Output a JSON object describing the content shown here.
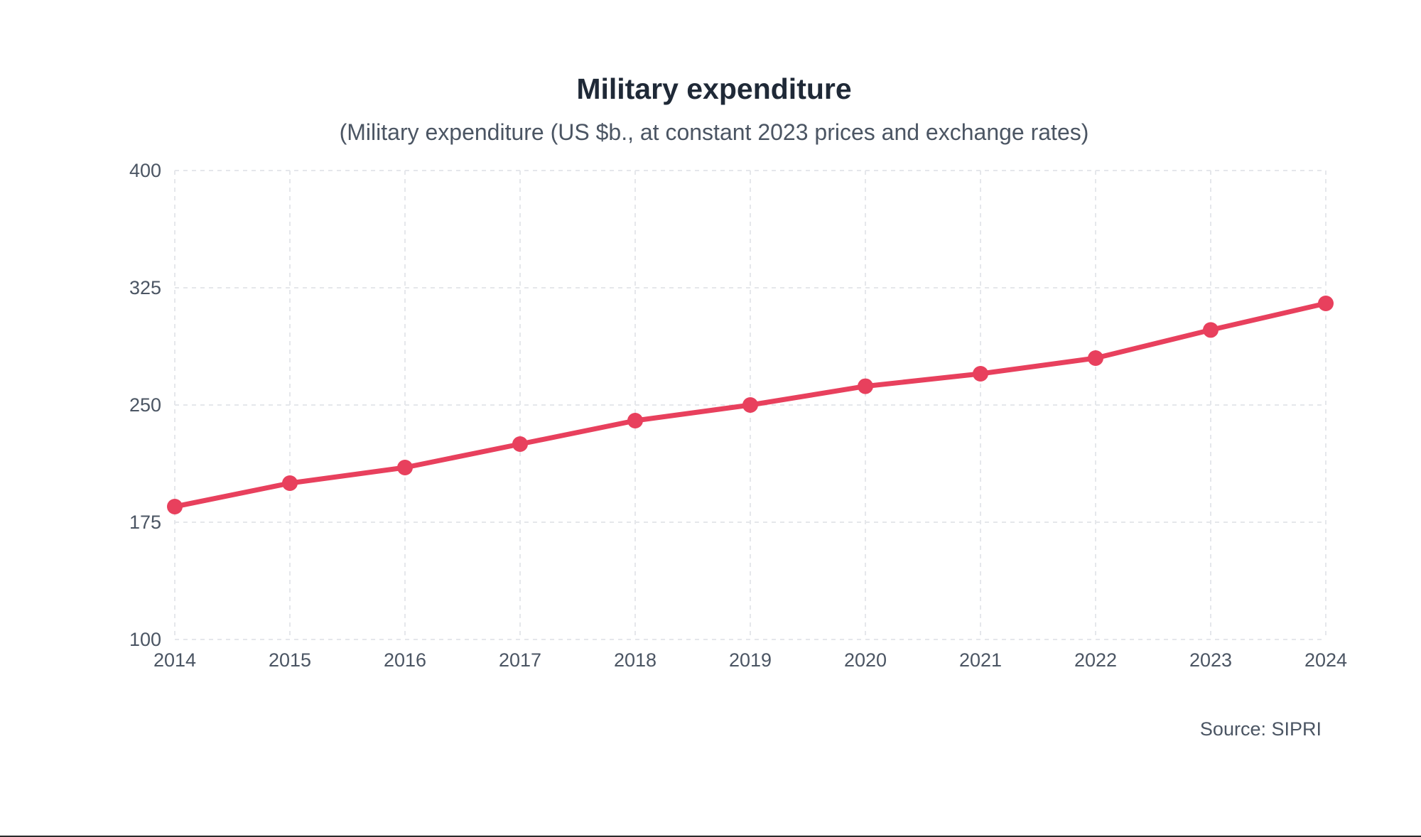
{
  "colors": {
    "series": "#e8405d",
    "text": "#1f2937",
    "muted": "#4b5563",
    "grid": "#e5e7eb"
  },
  "chart_data": {
    "type": "line",
    "title": "Military expenditure",
    "subtitle": "(Military expenditure (US $b., at constant 2023 prices and exchange rates)",
    "xlabel": "",
    "ylabel": "",
    "source": "Source: SIPRI",
    "categories": [
      "2014",
      "2015",
      "2016",
      "2017",
      "2018",
      "2019",
      "2020",
      "2021",
      "2022",
      "2023",
      "2024"
    ],
    "series": [
      {
        "name": "Military expenditure",
        "values": [
          185,
          200,
          210,
          225,
          240,
          250,
          262,
          270,
          280,
          298,
          315
        ]
      }
    ],
    "ylim": [
      100,
      400
    ],
    "yticks": [
      "100",
      "175",
      "250",
      "325",
      "400"
    ],
    "grid": true,
    "legend": "none"
  }
}
